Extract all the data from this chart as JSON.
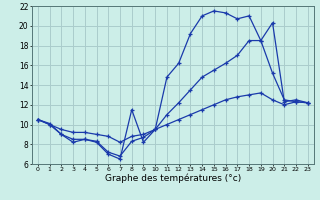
{
  "background_color": "#cceee8",
  "grid_color": "#aacccc",
  "line_color": "#1a3aab",
  "xlabel": "Graphe des températures (°c)",
  "xlim": [
    -0.5,
    23.5
  ],
  "ylim": [
    6,
    22
  ],
  "yticks": [
    6,
    8,
    10,
    12,
    14,
    16,
    18,
    20,
    22
  ],
  "xticks": [
    0,
    1,
    2,
    3,
    4,
    5,
    6,
    7,
    8,
    9,
    10,
    11,
    12,
    13,
    14,
    15,
    16,
    17,
    18,
    19,
    20,
    21,
    22,
    23
  ],
  "curve1_x": [
    0,
    1,
    2,
    3,
    4,
    5,
    6,
    7,
    8,
    9,
    10,
    11,
    12,
    13,
    14,
    15,
    16,
    17,
    18,
    19,
    20,
    21,
    22,
    23
  ],
  "curve1_y": [
    10.5,
    10.1,
    9.0,
    8.2,
    8.5,
    8.2,
    7.0,
    6.5,
    11.5,
    8.2,
    9.5,
    14.8,
    16.2,
    19.2,
    21.0,
    21.5,
    21.3,
    20.7,
    21.0,
    18.5,
    20.3,
    12.3,
    12.5,
    12.2
  ],
  "curve2_x": [
    0,
    1,
    2,
    3,
    4,
    5,
    6,
    7,
    8,
    9,
    10,
    11,
    12,
    13,
    14,
    15,
    16,
    17,
    18,
    19,
    20,
    21,
    22,
    23
  ],
  "curve2_y": [
    10.5,
    10.0,
    9.0,
    8.5,
    8.5,
    8.3,
    7.2,
    6.8,
    8.3,
    8.7,
    9.5,
    11.0,
    12.2,
    13.5,
    14.8,
    15.5,
    16.2,
    17.0,
    18.5,
    18.5,
    15.2,
    12.5,
    12.3,
    12.2
  ],
  "curve3_x": [
    0,
    1,
    2,
    3,
    4,
    5,
    6,
    7,
    8,
    9,
    10,
    11,
    12,
    13,
    14,
    15,
    16,
    17,
    18,
    19,
    20,
    21,
    22,
    23
  ],
  "curve3_y": [
    10.5,
    10.0,
    9.5,
    9.2,
    9.2,
    9.0,
    8.8,
    8.2,
    8.8,
    9.0,
    9.5,
    10.0,
    10.5,
    11.0,
    11.5,
    12.0,
    12.5,
    12.8,
    13.0,
    13.2,
    12.5,
    12.0,
    12.3,
    12.2
  ]
}
